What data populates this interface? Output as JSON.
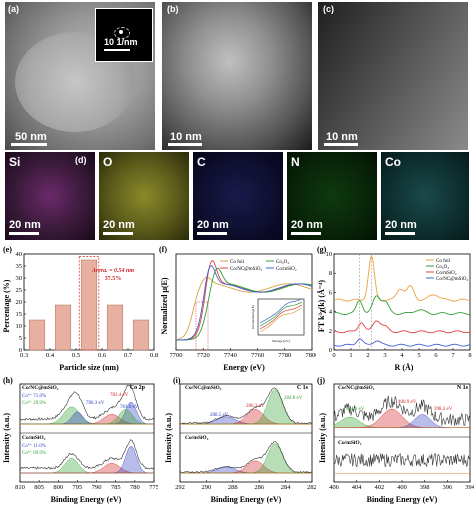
{
  "panels": {
    "a": {
      "label": "(a)",
      "scale": "50 nm",
      "inset_scale": "10 1/nm"
    },
    "b": {
      "label": "(b)",
      "scale": "10 nm"
    },
    "c": {
      "label": "(c)",
      "scale": "10 nm"
    },
    "d": {
      "label": "(d)",
      "elements": [
        "Si",
        "O",
        "C",
        "N",
        "Co"
      ],
      "scales": [
        "20 nm",
        "20 nm",
        "20 nm",
        "20 nm",
        "20 nm"
      ]
    },
    "e": {
      "label": "(e)",
      "xlabel": "Particle size (nm)",
      "ylabel": "Percentage (%)",
      "annotation1": "Avera. = 0.54 nm",
      "annotation2": "37.5%"
    },
    "f": {
      "label": "(f)",
      "xlabel": "Energy (eV)",
      "ylabel": "Normalized μ(E)",
      "legend": [
        "Co foil",
        "Co/NC@mSiO₂",
        "Co₃O₄",
        "Co/mSiO₂"
      ],
      "inset_ylabel": "Normalized μ(E)",
      "inset_xlabel": "Energy (eV)"
    },
    "g": {
      "label": "(g)",
      "xlabel": "R (Å)",
      "ylabel": "FT k³χ(k) (Å⁻⁴)",
      "legend": [
        "Co foil",
        "Co₃O₄",
        "Co/mSiO₂",
        "Co/NC@mSiO₂"
      ]
    },
    "h": {
      "label": "(h)",
      "xlabel": "Binding Energy (eV)",
      "ylabel": "Intensity (a.u.)",
      "title": "Co 2p",
      "sample1": "Co/NC@mSiO₂",
      "sample2": "Co/mSiO₂",
      "co3_1": "Co³⁺ 71.0%",
      "co2_1": "Co²⁺ 29.0%",
      "co3_2": "Co³⁺ 11.0%",
      "co2_2": "Co²⁺ 89.0%",
      "peak1": "782.4 eV",
      "peak2": "780.3 eV",
      "peak3": "781.0 eV"
    },
    "i": {
      "label": "(i)",
      "xlabel": "Binding Energy (eV)",
      "ylabel": "Intensity (a.u.)",
      "title": "C 1s",
      "sample1": "Co/NC@mSiO₂",
      "sample2": "Co/mSiO₂",
      "peak1": "288.5 eV",
      "peak2": "286.3 eV",
      "peak3": "284.8 eV"
    },
    "j": {
      "label": "(j)",
      "xlabel": "Binding Energy (eV)",
      "ylabel": "Intensity (a.u.)",
      "title": "N 1s",
      "sample1": "Co/NC@mSiO₂",
      "sample2": "Co/mSiO₂",
      "peak1": "400.9 eV",
      "peak2": "398.2 eV",
      "peak3": "404.6 eV"
    }
  },
  "chart_data": [
    {
      "panel": "e",
      "type": "bar",
      "categories": [
        "0.35",
        "0.45",
        "0.55",
        "0.65",
        "0.75"
      ],
      "values": [
        12.5,
        18.75,
        37.5,
        18.75,
        12.5
      ],
      "xlabel": "Particle size (nm)",
      "ylabel": "Percentage (%)",
      "xticks": [
        "0.3",
        "0.4",
        "0.5",
        "0.6",
        "0.7",
        "0.8"
      ],
      "yticks": [
        "0",
        "5",
        "10",
        "15",
        "20",
        "25",
        "30",
        "35",
        "40"
      ],
      "ylim": [
        0,
        40
      ],
      "xlim": [
        0.3,
        0.8
      ]
    },
    {
      "panel": "f",
      "type": "line",
      "xlabel": "Energy (eV)",
      "ylabel": "Normalized μ(E)",
      "xticks": [
        "7700",
        "7720",
        "7740",
        "7760",
        "7780",
        "7800"
      ],
      "xlim": [
        7700,
        7800
      ],
      "series": [
        {
          "name": "Co foil",
          "color": "#d8a040"
        },
        {
          "name": "Co/NC@mSiO₂",
          "color": "#e04040"
        },
        {
          "name": "Co₃O₄",
          "color": "#30a030"
        },
        {
          "name": "Co/mSiO₂",
          "color": "#4060d0"
        }
      ]
    },
    {
      "panel": "g",
      "type": "line",
      "xlabel": "R (Å)",
      "ylabel": "FT k³χ(k) (Å⁻⁴)",
      "xticks": [
        "0",
        "1",
        "2",
        "3",
        "4",
        "5",
        "6",
        "7",
        "8"
      ],
      "yticks": [
        "0",
        "2",
        "4",
        "6",
        "8",
        "10"
      ],
      "xlim": [
        0,
        8
      ],
      "ylim": [
        0,
        10
      ],
      "series": [
        {
          "name": "Co foil",
          "color": "#f0a040"
        },
        {
          "name": "Co₃O₄",
          "color": "#30a030"
        },
        {
          "name": "Co/mSiO₂",
          "color": "#e04040"
        },
        {
          "name": "Co/NC@mSiO₂",
          "color": "#4060d0"
        }
      ]
    },
    {
      "panel": "h",
      "type": "line",
      "xlabel": "Binding Energy (eV)",
      "xticks": [
        "810",
        "805",
        "800",
        "795",
        "790",
        "785",
        "780",
        "775"
      ],
      "xlim": [
        810,
        775
      ]
    },
    {
      "panel": "i",
      "type": "line",
      "xlabel": "Binding Energy (eV)",
      "xticks": [
        "292",
        "290",
        "288",
        "286",
        "284",
        "282"
      ],
      "xlim": [
        292,
        282
      ]
    },
    {
      "panel": "j",
      "type": "line",
      "xlabel": "Binding Energy (eV)",
      "xticks": [
        "406",
        "404",
        "402",
        "400",
        "398",
        "396",
        "394"
      ],
      "xlim": [
        406,
        394
      ]
    }
  ]
}
